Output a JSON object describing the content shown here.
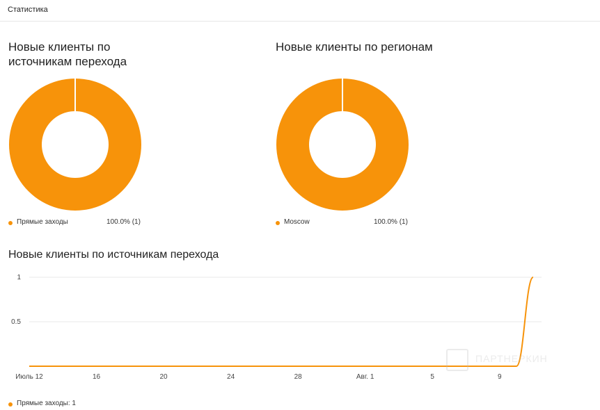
{
  "header": {
    "title": "Статистика"
  },
  "donut_cards": [
    {
      "title": "Новые клиенты по источникам перехода",
      "legend_label": "Прямые заходы",
      "legend_value": "100.0% (1)"
    },
    {
      "title": "Новые клиенты по регионам",
      "legend_label": "Moscow",
      "legend_value": "100.0% (1)"
    }
  ],
  "line_section": {
    "title": "Новые клиенты по источникам перехода",
    "legend_text": "Прямые заходы: 1"
  },
  "watermark": {
    "text": "ПАРТНЕРКИН"
  },
  "colors": {
    "accent": "#f7930a",
    "gridline": "#e8e8e8",
    "separator": "#ffffff"
  },
  "chart_data": [
    {
      "type": "pie",
      "donut": true,
      "title": "Новые клиенты по источникам перехода",
      "categories": [
        "Прямые заходы"
      ],
      "values": [
        1
      ],
      "percents": [
        "100.0%"
      ],
      "legend": "bottom"
    },
    {
      "type": "pie",
      "donut": true,
      "title": "Новые клиенты по регионам",
      "categories": [
        "Moscow"
      ],
      "values": [
        1
      ],
      "percents": [
        "100.0%"
      ],
      "legend": "bottom"
    },
    {
      "type": "line",
      "title": "Новые клиенты по источникам перехода",
      "x_tick_labels": [
        "Июль 12",
        "16",
        "20",
        "24",
        "28",
        "Авг. 1",
        "5",
        "9"
      ],
      "y_tick_labels": [
        "1",
        "0.5"
      ],
      "ylim": [
        0,
        1
      ],
      "grid": true,
      "legend": "bottom-left",
      "series": [
        {
          "name": "Прямые заходы",
          "x": [
            "Июль 12",
            "Июль 13",
            "Июль 14",
            "Июль 15",
            "Июль 16",
            "Июль 17",
            "Июль 18",
            "Июль 19",
            "Июль 20",
            "Июль 21",
            "Июль 22",
            "Июль 23",
            "Июль 24",
            "Июль 25",
            "Июль 26",
            "Июль 27",
            "Июль 28",
            "Июль 29",
            "Июль 30",
            "Июль 31",
            "Авг. 1",
            "Авг. 2",
            "Авг. 3",
            "Авг. 4",
            "Авг. 5",
            "Авг. 6",
            "Авг. 7",
            "Авг. 8",
            "Авг. 9",
            "Авг. 10",
            "Авг. 11"
          ],
          "values": [
            0,
            0,
            0,
            0,
            0,
            0,
            0,
            0,
            0,
            0,
            0,
            0,
            0,
            0,
            0,
            0,
            0,
            0,
            0,
            0,
            0,
            0,
            0,
            0,
            0,
            0,
            0,
            0,
            0,
            0,
            1
          ]
        }
      ]
    }
  ]
}
